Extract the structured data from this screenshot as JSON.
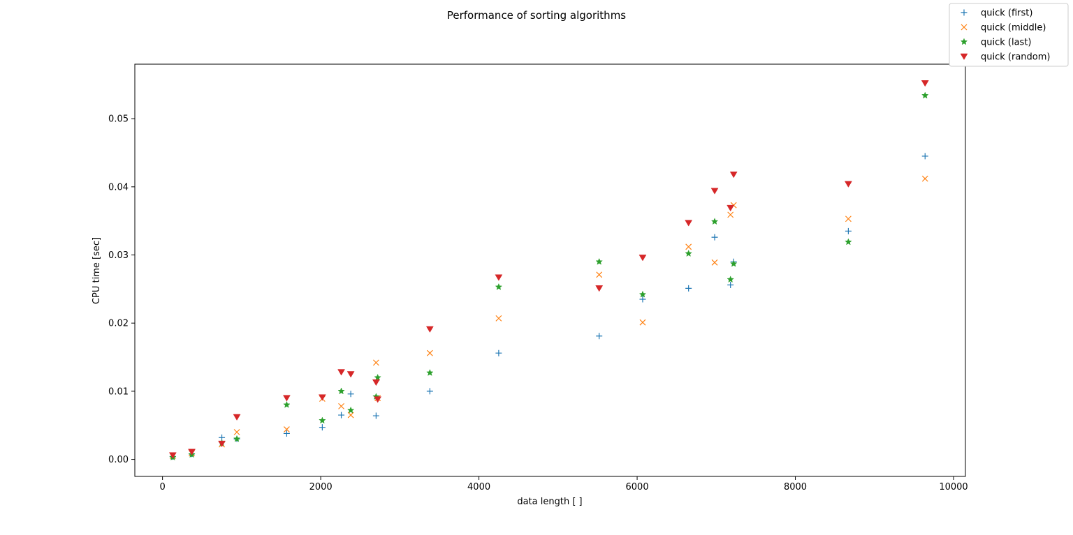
{
  "chart_data": {
    "type": "scatter",
    "title": "Performance of sorting algorithms",
    "xlabel": "data length [ ]",
    "ylabel": "CPU time [sec]",
    "xlim": [
      -350,
      10150
    ],
    "ylim": [
      -0.0025,
      0.058
    ],
    "xticks": [
      0,
      2000,
      4000,
      6000,
      8000,
      10000
    ],
    "xtick_labels": [
      "0",
      "2000",
      "4000",
      "6000",
      "8000",
      "10000"
    ],
    "yticks": [
      0.0,
      0.01,
      0.02,
      0.03,
      0.04,
      0.05
    ],
    "ytick_labels": [
      "0.00",
      "0.01",
      "0.02",
      "0.03",
      "0.04",
      "0.05"
    ],
    "grid": false,
    "legend_position": "top-right (outside plot)",
    "series": [
      {
        "name": "quick (first)",
        "marker": "plus",
        "color": "#1f77b4",
        "points": [
          [
            130,
            0.0004
          ],
          [
            370,
            0.0008
          ],
          [
            750,
            0.0032
          ],
          [
            940,
            0.003
          ],
          [
            1570,
            0.0038
          ],
          [
            2020,
            0.0047
          ],
          [
            2260,
            0.0065
          ],
          [
            2380,
            0.0096
          ],
          [
            2700,
            0.0064
          ],
          [
            3380,
            0.01
          ],
          [
            4250,
            0.0156
          ],
          [
            5520,
            0.0181
          ],
          [
            6070,
            0.0235
          ],
          [
            6650,
            0.0251
          ],
          [
            6980,
            0.0326
          ],
          [
            7180,
            0.0256
          ],
          [
            7220,
            0.029
          ],
          [
            8670,
            0.0335
          ],
          [
            9640,
            0.0445
          ]
        ]
      },
      {
        "name": "quick (middle)",
        "marker": "x",
        "color": "#ff7f0e",
        "points": [
          [
            130,
            0.0005
          ],
          [
            370,
            0.0009
          ],
          [
            750,
            0.0022
          ],
          [
            940,
            0.004
          ],
          [
            1570,
            0.0044
          ],
          [
            2020,
            0.0089
          ],
          [
            2260,
            0.0078
          ],
          [
            2380,
            0.0065
          ],
          [
            2700,
            0.0142
          ],
          [
            2720,
            0.009
          ],
          [
            3380,
            0.0156
          ],
          [
            4250,
            0.0207
          ],
          [
            5520,
            0.0271
          ],
          [
            6070,
            0.0201
          ],
          [
            6650,
            0.0312
          ],
          [
            6980,
            0.0289
          ],
          [
            7180,
            0.0359
          ],
          [
            7220,
            0.0373
          ],
          [
            8670,
            0.0353
          ],
          [
            9640,
            0.0412
          ]
        ]
      },
      {
        "name": "quick (last)",
        "marker": "star",
        "color": "#2ca02c",
        "points": [
          [
            130,
            0.0003
          ],
          [
            370,
            0.0007
          ],
          [
            750,
            0.0024
          ],
          [
            940,
            0.003
          ],
          [
            1570,
            0.008
          ],
          [
            2020,
            0.0057
          ],
          [
            2260,
            0.01
          ],
          [
            2380,
            0.0072
          ],
          [
            2700,
            0.0092
          ],
          [
            2720,
            0.012
          ],
          [
            3380,
            0.0127
          ],
          [
            4250,
            0.0253
          ],
          [
            5520,
            0.029
          ],
          [
            6070,
            0.0242
          ],
          [
            6650,
            0.0302
          ],
          [
            6980,
            0.0349
          ],
          [
            7180,
            0.0264
          ],
          [
            7220,
            0.0287
          ],
          [
            8670,
            0.0319
          ],
          [
            9640,
            0.0534
          ]
        ]
      },
      {
        "name": "quick (random)",
        "marker": "triangle-down",
        "color": "#d62728",
        "points": [
          [
            130,
            0.0006
          ],
          [
            370,
            0.0011
          ],
          [
            750,
            0.0023
          ],
          [
            940,
            0.0062
          ],
          [
            1570,
            0.009
          ],
          [
            2020,
            0.0091
          ],
          [
            2260,
            0.0128
          ],
          [
            2380,
            0.0125
          ],
          [
            2700,
            0.0113
          ],
          [
            2720,
            0.0088
          ],
          [
            3380,
            0.0191
          ],
          [
            4250,
            0.0267
          ],
          [
            5520,
            0.0251
          ],
          [
            6070,
            0.0296
          ],
          [
            6650,
            0.0347
          ],
          [
            6980,
            0.0394
          ],
          [
            7180,
            0.0369
          ],
          [
            7220,
            0.0418
          ],
          [
            8670,
            0.0404
          ],
          [
            9640,
            0.0552
          ]
        ]
      }
    ]
  }
}
